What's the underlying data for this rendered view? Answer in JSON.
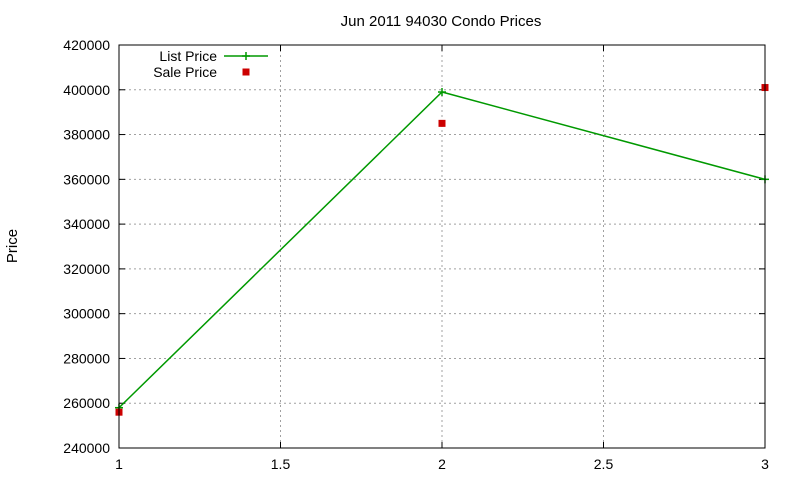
{
  "chart_data": {
    "type": "line",
    "title": "Jun 2011 94030 Condo Prices",
    "xlabel": "",
    "ylabel": "Price",
    "xlim": [
      1,
      3
    ],
    "ylim": [
      240000,
      420000
    ],
    "x_ticks": [
      1,
      1.5,
      2,
      2.5,
      3
    ],
    "x_tick_labels": [
      "1",
      "1.5",
      "2",
      "2.5",
      "3"
    ],
    "y_ticks": [
      240000,
      260000,
      280000,
      300000,
      320000,
      340000,
      360000,
      380000,
      400000,
      420000
    ],
    "y_tick_labels": [
      "240000",
      "260000",
      "280000",
      "300000",
      "320000",
      "340000",
      "360000",
      "380000",
      "400000",
      "420000"
    ],
    "grid": true,
    "legend_position": "top-left",
    "series": [
      {
        "name": "List Price",
        "style": "line-with-plus-markers",
        "color": "#009900",
        "x": [
          1,
          2,
          3
        ],
        "y": [
          258000,
          399000,
          360000
        ]
      },
      {
        "name": "Sale Price",
        "style": "square-markers",
        "color": "#cc0000",
        "x": [
          1,
          2,
          3
        ],
        "y": [
          256000,
          385000,
          401000
        ]
      }
    ]
  }
}
